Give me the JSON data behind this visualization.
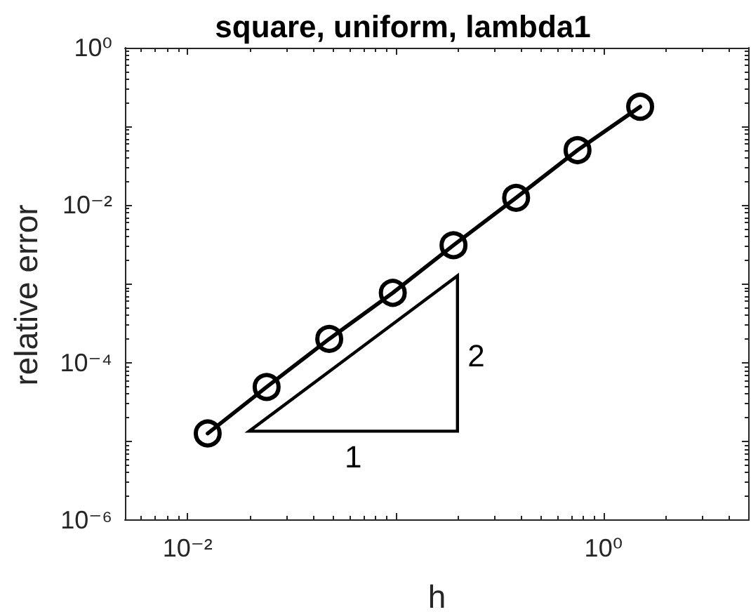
{
  "chart_data": {
    "type": "line",
    "title": "square, uniform, lambda1",
    "xlabel": "h",
    "ylabel": "relative error",
    "x": [
      0.0125,
      0.024,
      0.048,
      0.097,
      0.19,
      0.38,
      0.75,
      1.5
    ],
    "series": [
      {
        "color": "#000000",
        "values": [
          1.26e-05,
          4.9e-05,
          0.0002,
          0.00077,
          0.0031,
          0.0124,
          0.05,
          0.178
        ]
      }
    ],
    "annotations": [
      "1",
      "2"
    ],
    "xlim": [
      0.005,
      5
    ],
    "ylim": [
      1e-06,
      1
    ],
    "xticks": [
      {
        "value": 0.006,
        "label": null
      },
      {
        "value": 0.007,
        "label": null
      },
      {
        "value": 0.008,
        "label": null
      },
      {
        "value": 0.009,
        "label": null
      },
      {
        "value": 0.01,
        "label": "10⁻²"
      },
      {
        "value": 0.02,
        "label": null
      },
      {
        "value": 0.03,
        "label": null
      },
      {
        "value": 0.04,
        "label": null
      },
      {
        "value": 0.05,
        "label": null
      },
      {
        "value": 0.06,
        "label": null
      },
      {
        "value": 0.07,
        "label": null
      },
      {
        "value": 0.08,
        "label": null
      },
      {
        "value": 0.09,
        "label": null
      },
      {
        "value": 0.1,
        "label": null
      },
      {
        "value": 0.2,
        "label": null
      },
      {
        "value": 0.3,
        "label": null
      },
      {
        "value": 0.4,
        "label": null
      },
      {
        "value": 0.5,
        "label": null
      },
      {
        "value": 0.6,
        "label": null
      },
      {
        "value": 0.7,
        "label": null
      },
      {
        "value": 0.8,
        "label": null
      },
      {
        "value": 0.9,
        "label": null
      },
      {
        "value": 1,
        "label": "10⁰"
      },
      {
        "value": 2,
        "label": null
      },
      {
        "value": 3,
        "label": null
      },
      {
        "value": 4,
        "label": null
      }
    ],
    "yticks": [
      {
        "value": 1e-06,
        "label": "10⁻⁶"
      },
      {
        "value": 2e-06,
        "label": null
      },
      {
        "value": 3e-06,
        "label": null
      },
      {
        "value": 4e-06,
        "label": null
      },
      {
        "value": 5e-06,
        "label": null
      },
      {
        "value": 6e-06,
        "label": null
      },
      {
        "value": 7e-06,
        "label": null
      },
      {
        "value": 8e-06,
        "label": null
      },
      {
        "value": 9e-06,
        "label": null
      },
      {
        "value": 1e-05,
        "label": null
      },
      {
        "value": 2e-05,
        "label": null
      },
      {
        "value": 3e-05,
        "label": null
      },
      {
        "value": 4e-05,
        "label": null
      },
      {
        "value": 5e-05,
        "label": null
      },
      {
        "value": 6e-05,
        "label": null
      },
      {
        "value": 7e-05,
        "label": null
      },
      {
        "value": 8e-05,
        "label": null
      },
      {
        "value": 9e-05,
        "label": null
      },
      {
        "value": 0.0001,
        "label": "10⁻⁴"
      },
      {
        "value": 0.0002,
        "label": null
      },
      {
        "value": 0.0003,
        "label": null
      },
      {
        "value": 0.0004,
        "label": null
      },
      {
        "value": 0.0005,
        "label": null
      },
      {
        "value": 0.0006,
        "label": null
      },
      {
        "value": 0.0007,
        "label": null
      },
      {
        "value": 0.0008,
        "label": null
      },
      {
        "value": 0.0009,
        "label": null
      },
      {
        "value": 0.001,
        "label": null
      },
      {
        "value": 0.002,
        "label": null
      },
      {
        "value": 0.003,
        "label": null
      },
      {
        "value": 0.004,
        "label": null
      },
      {
        "value": 0.005,
        "label": null
      },
      {
        "value": 0.006,
        "label": null
      },
      {
        "value": 0.007,
        "label": null
      },
      {
        "value": 0.008,
        "label": null
      },
      {
        "value": 0.009,
        "label": null
      },
      {
        "value": 0.01,
        "label": "10⁻²"
      },
      {
        "value": 0.02,
        "label": null
      },
      {
        "value": 0.03,
        "label": null
      },
      {
        "value": 0.04,
        "label": null
      },
      {
        "value": 0.05,
        "label": null
      },
      {
        "value": 0.06,
        "label": null
      },
      {
        "value": 0.07,
        "label": null
      },
      {
        "value": 0.08,
        "label": null
      },
      {
        "value": 0.09,
        "label": null
      },
      {
        "value": 0.1,
        "label": null
      },
      {
        "value": 0.2,
        "label": null
      },
      {
        "value": 0.3,
        "label": null
      },
      {
        "value": 0.4,
        "label": null
      },
      {
        "value": 0.5,
        "label": null
      },
      {
        "value": 0.6,
        "label": null
      },
      {
        "value": 0.7,
        "label": null
      },
      {
        "value": 0.8,
        "label": null
      },
      {
        "value": 0.9,
        "label": null
      },
      {
        "value": 1,
        "label": "10⁰"
      }
    ],
    "log": "xy",
    "grid": false,
    "marker": "circle",
    "line_style": "solid"
  }
}
